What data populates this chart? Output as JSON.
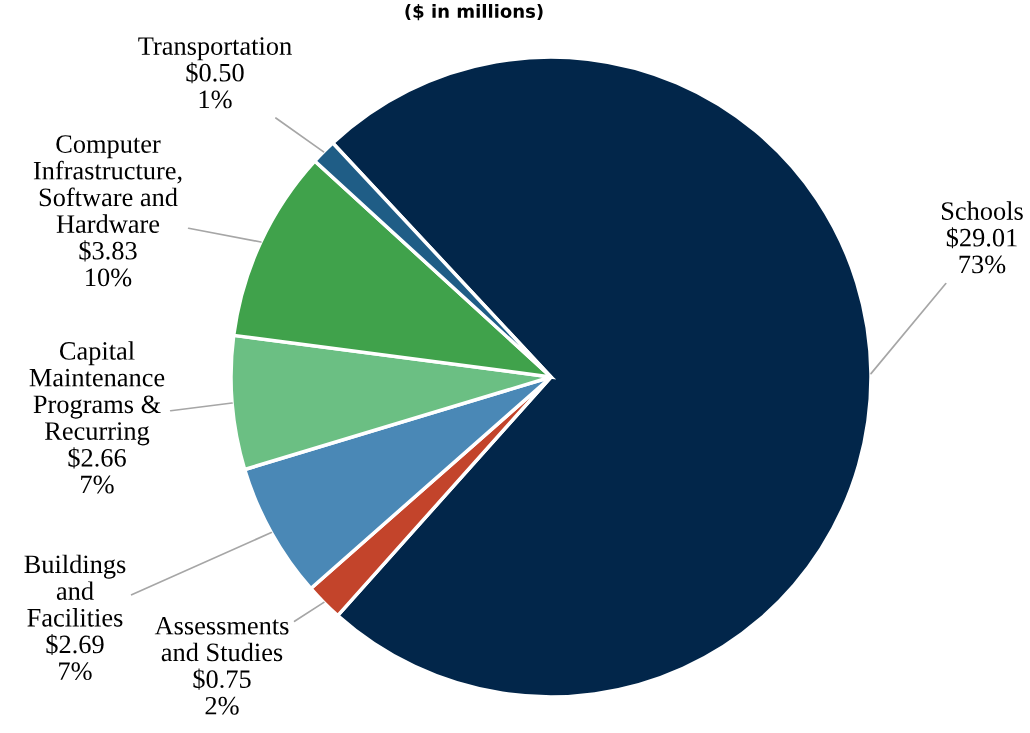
{
  "chart_data": {
    "type": "pie",
    "title": "($ in millions)",
    "categories": [
      "Schools",
      "Assessments and Studies",
      "Buildings and Facilities",
      "Capital Maintenance Programs & Recurring",
      "Computer Infrastructure, Software and Hardware",
      "Transportation"
    ],
    "values": [
      29.01,
      0.75,
      2.69,
      2.66,
      3.83,
      0.5
    ],
    "value_labels": [
      "$29.01\n73%",
      "$0.75\n2%",
      "$2.69\n7%",
      "$2.66\n7%",
      "$3.83\n10%",
      "$0.50\n1%"
    ],
    "colors": [
      "#02264a",
      "#c3442b",
      "#4a88b6",
      "#6bbf83",
      "#40a24b",
      "#1f5d86"
    ]
  }
}
